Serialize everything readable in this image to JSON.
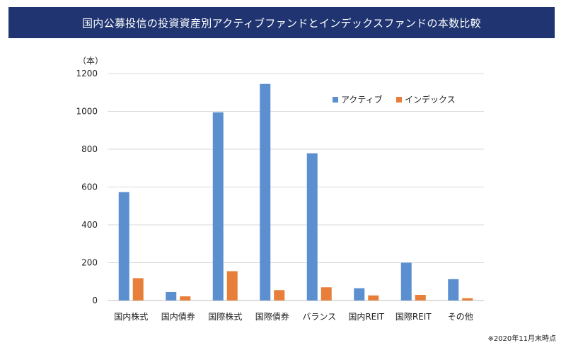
{
  "header": {
    "title": "国内公募投信の投資資産別アクティブファンドとインデックスファンドの本数比較"
  },
  "footnote": "※2020年11月末時点",
  "chart_data": {
    "type": "bar",
    "title": "",
    "ylabel": "（本）",
    "xlabel": "",
    "ylim": [
      0,
      1200
    ],
    "yticks": [
      0,
      200,
      400,
      600,
      800,
      1000,
      1200
    ],
    "grid": true,
    "legend_position": "top-right",
    "categories": [
      "国内株式",
      "国内債券",
      "国際株式",
      "国際債券",
      "バランス",
      "国内REIT",
      "国際REIT",
      "その他"
    ],
    "series": [
      {
        "name": "アクティブ",
        "color": "#5b8fd0",
        "values": [
          573,
          45,
          995,
          1145,
          778,
          65,
          200,
          113
        ]
      },
      {
        "name": "インデックス",
        "color": "#e77e3a",
        "values": [
          118,
          22,
          155,
          55,
          70,
          27,
          30,
          12
        ]
      }
    ]
  }
}
